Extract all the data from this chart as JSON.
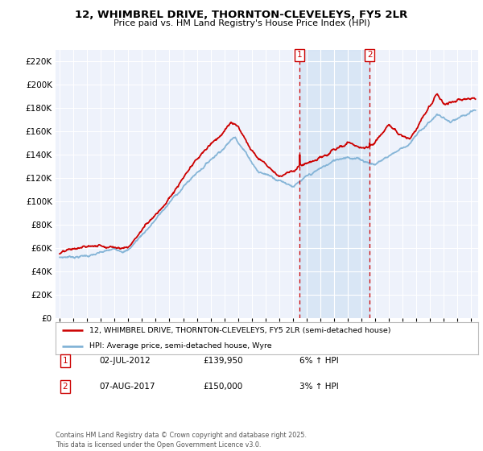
{
  "title": "12, WHIMBREL DRIVE, THORNTON-CLEVELEYS, FY5 2LR",
  "subtitle": "Price paid vs. HM Land Registry's House Price Index (HPI)",
  "ylim": [
    0,
    230000
  ],
  "yticks": [
    0,
    20000,
    40000,
    60000,
    80000,
    100000,
    120000,
    140000,
    160000,
    180000,
    200000,
    220000
  ],
  "xlim_start": 1994.7,
  "xlim_end": 2025.5,
  "background_color": "#ffffff",
  "plot_bg_color": "#eef2fb",
  "grid_color": "#ffffff",
  "sale1_date": 2012.5,
  "sale1_price": 139950,
  "sale1_label": "1",
  "sale1_date_str": "02-JUL-2012",
  "sale1_price_str": "£139,950",
  "sale1_hpi": "6% ↑ HPI",
  "sale2_date": 2017.6,
  "sale2_price": 150000,
  "sale2_label": "2",
  "sale2_date_str": "07-AUG-2017",
  "sale2_price_str": "£150,000",
  "sale2_hpi": "3% ↑ HPI",
  "legend_label_red": "12, WHIMBREL DRIVE, THORNTON-CLEVELEYS, FY5 2LR (semi-detached house)",
  "legend_label_blue": "HPI: Average price, semi-detached house, Wyre",
  "footnote": "Contains HM Land Registry data © Crown copyright and database right 2025.\nThis data is licensed under the Open Government Licence v3.0.",
  "red_color": "#cc0000",
  "blue_color": "#7bafd4",
  "shade_color": "#d6e4f5"
}
